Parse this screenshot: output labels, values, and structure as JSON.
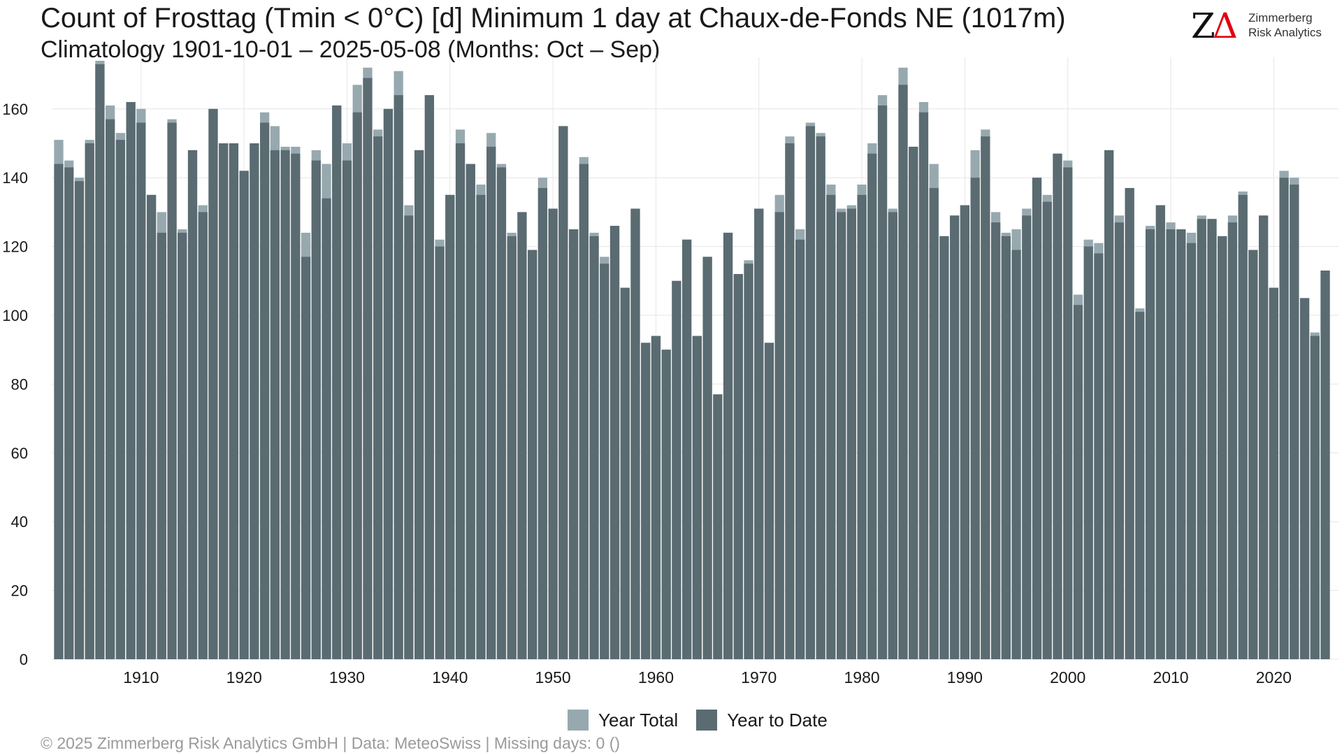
{
  "header": {
    "title": "Count of Frosttag (Tmin < 0°C) [d] Minimum 1 day at Chaux-de-Fonds  NE (1017m)",
    "subtitle": "Climatology 1901-10-01 – 2025-05-08 (Months: Oct – Sep)"
  },
  "logo": {
    "mark_z": "Z",
    "mark_delta": "Δ",
    "line1": "Zimmerberg",
    "line2": "Risk Analytics"
  },
  "legend": {
    "year_total": "Year Total",
    "year_to_date": "Year to Date"
  },
  "footer": "©  2025 Zimmerberg Risk Analytics GmbH | Data: MeteoSwiss | Missing days: 0 ()",
  "colors": {
    "year_total": "#97a9af",
    "year_to_date": "#5a6b71",
    "grid": "#e6e6e6"
  },
  "chart_data": {
    "type": "bar",
    "x_ticks": [
      1910,
      1920,
      1930,
      1940,
      1950,
      1960,
      1970,
      1980,
      1990,
      2000,
      2010,
      2020
    ],
    "y_ticks": [
      0,
      20,
      40,
      60,
      80,
      100,
      120,
      140,
      160
    ],
    "ylim": [
      0,
      175
    ],
    "grid": true,
    "legend_position": "bottom",
    "x": [
      1902,
      1903,
      1904,
      1905,
      1906,
      1907,
      1908,
      1909,
      1910,
      1911,
      1912,
      1913,
      1914,
      1915,
      1916,
      1917,
      1918,
      1919,
      1920,
      1921,
      1922,
      1923,
      1924,
      1925,
      1926,
      1927,
      1928,
      1929,
      1930,
      1931,
      1932,
      1933,
      1934,
      1935,
      1936,
      1937,
      1938,
      1939,
      1940,
      1941,
      1942,
      1943,
      1944,
      1945,
      1946,
      1947,
      1948,
      1949,
      1950,
      1951,
      1952,
      1953,
      1954,
      1955,
      1956,
      1957,
      1958,
      1959,
      1960,
      1961,
      1962,
      1963,
      1964,
      1965,
      1966,
      1967,
      1968,
      1969,
      1970,
      1971,
      1972,
      1973,
      1974,
      1975,
      1976,
      1977,
      1978,
      1979,
      1980,
      1981,
      1982,
      1983,
      1984,
      1985,
      1986,
      1987,
      1988,
      1989,
      1990,
      1991,
      1992,
      1993,
      1994,
      1995,
      1996,
      1997,
      1998,
      1999,
      2000,
      2001,
      2002,
      2003,
      2004,
      2005,
      2006,
      2007,
      2008,
      2009,
      2010,
      2011,
      2012,
      2013,
      2014,
      2015,
      2016,
      2017,
      2018,
      2019,
      2020,
      2021,
      2022,
      2023,
      2024,
      2025
    ],
    "series": [
      {
        "name": "Year Total",
        "values": [
          151,
          145,
          140,
          151,
          174,
          161,
          153,
          162,
          160,
          135,
          130,
          157,
          125,
          148,
          132,
          160,
          150,
          150,
          142,
          150,
          159,
          155,
          149,
          149,
          124,
          148,
          144,
          161,
          150,
          167,
          172,
          154,
          160,
          171,
          132,
          148,
          164,
          122,
          135,
          154,
          144,
          138,
          153,
          144,
          124,
          130,
          119,
          140,
          131,
          155,
          125,
          146,
          124,
          117,
          126,
          108,
          131,
          92,
          94,
          90,
          110,
          122,
          94,
          117,
          77,
          124,
          112,
          116,
          131,
          92,
          135,
          152,
          125,
          156,
          153,
          138,
          131,
          132,
          138,
          150,
          164,
          131,
          172,
          149,
          162,
          144,
          123,
          129,
          132,
          148,
          154,
          130,
          124,
          125,
          131,
          140,
          135,
          147,
          145,
          106,
          122,
          121,
          148,
          129,
          137,
          102,
          126,
          132,
          127,
          125,
          124,
          129,
          128,
          123,
          129,
          136,
          119,
          129,
          108,
          142,
          140,
          105,
          95,
          113
        ]
      },
      {
        "name": "Year to Date",
        "values": [
          144,
          143,
          139,
          150,
          173,
          157,
          151,
          162,
          156,
          135,
          124,
          156,
          124,
          148,
          130,
          160,
          150,
          150,
          142,
          150,
          156,
          148,
          148,
          147,
          117,
          145,
          134,
          161,
          145,
          159,
          169,
          152,
          160,
          164,
          129,
          148,
          164,
          120,
          135,
          150,
          144,
          135,
          149,
          143,
          123,
          130,
          119,
          137,
          131,
          155,
          125,
          144,
          123,
          115,
          126,
          108,
          131,
          92,
          94,
          90,
          110,
          122,
          94,
          117,
          77,
          124,
          112,
          115,
          131,
          92,
          130,
          150,
          122,
          155,
          152,
          135,
          130,
          131,
          135,
          147,
          161,
          130,
          167,
          149,
          159,
          137,
          123,
          129,
          132,
          140,
          152,
          127,
          123,
          119,
          129,
          140,
          133,
          147,
          143,
          103,
          120,
          118,
          148,
          127,
          137,
          101,
          125,
          132,
          125,
          125,
          121,
          128,
          128,
          123,
          127,
          135,
          119,
          129,
          108,
          140,
          138,
          105,
          94,
          113
        ]
      }
    ]
  }
}
